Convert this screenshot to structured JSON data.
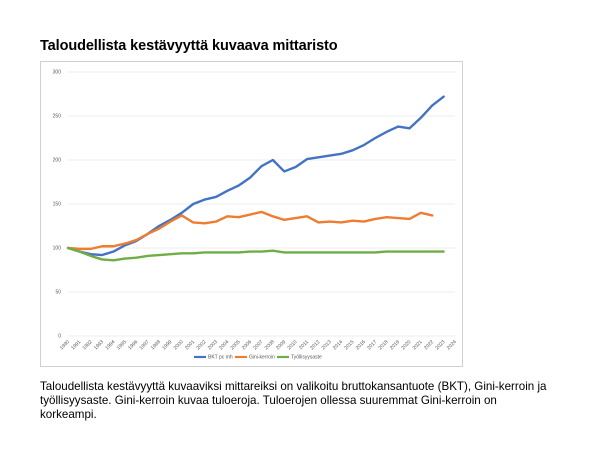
{
  "title": "Taloudellista kestävyyttä kuvaava mittaristo",
  "caption": "Taloudellista kestävyyttä kuvaaviksi mittareiksi on valikoitu bruttokansantuote (BKT), Gini-kerroin ja työllisyysaste. Gini-kerroin kuvaa tuloeroja. Tuloerojen ollessa suuremmat Gini-kerroin on korkeampi.",
  "chart_data": {
    "type": "line",
    "title": "",
    "xlabel": "",
    "ylabel": "",
    "ylim": [
      0,
      300
    ],
    "yticks": [
      0,
      50,
      100,
      150,
      200,
      250,
      300
    ],
    "grid": true,
    "legend_position": "bottom",
    "x": [
      "1990",
      "1991",
      "1992",
      "1993",
      "1994",
      "1995",
      "1996",
      "1997",
      "1998",
      "1999",
      "2000",
      "2001",
      "2002",
      "2003",
      "2004",
      "2005",
      "2006",
      "2007",
      "2008",
      "2009",
      "2010",
      "2011",
      "2012",
      "2013",
      "2014",
      "2015",
      "2016",
      "2017",
      "2018",
      "2019",
      "2020",
      "2021",
      "2022",
      "2023",
      "2024"
    ],
    "series": [
      {
        "name": "BKT pc mh",
        "color": "#4472c4",
        "values": [
          100,
          96,
          93,
          92,
          96,
          103,
          108,
          116,
          125,
          132,
          140,
          150,
          155,
          158,
          165,
          171,
          180,
          193,
          200,
          187,
          192,
          201,
          203,
          205,
          207,
          211,
          217,
          225,
          232,
          238,
          236,
          248,
          262,
          272,
          null
        ]
      },
      {
        "name": "Gini-kerroin",
        "color": "#ed7d31",
        "values": [
          100,
          99,
          99,
          102,
          102,
          105,
          109,
          116,
          122,
          130,
          137,
          129,
          128,
          130,
          136,
          135,
          138,
          141,
          136,
          132,
          134,
          136,
          129,
          130,
          129,
          131,
          130,
          133,
          135,
          134,
          133,
          140,
          137,
          null,
          null
        ]
      },
      {
        "name": "Työllisyysaste",
        "color": "#70ad47",
        "values": [
          100,
          96,
          91,
          87,
          86,
          88,
          89,
          91,
          92,
          93,
          94,
          94,
          95,
          95,
          95,
          95,
          96,
          96,
          97,
          95,
          95,
          95,
          95,
          95,
          95,
          95,
          95,
          95,
          96,
          96,
          96,
          96,
          96,
          96,
          null
        ]
      }
    ]
  }
}
